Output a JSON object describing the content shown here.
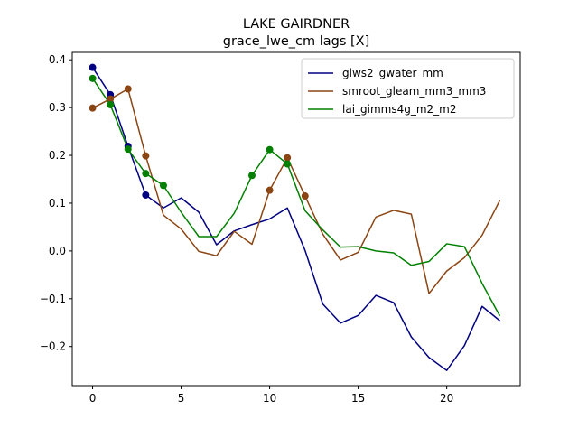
{
  "chart_data": {
    "type": "line",
    "title": "LAKE GAIRDNER",
    "subtitle": "grace_lwe_cm lags [X]",
    "xlabel": "",
    "ylabel": "",
    "xlim": [
      -1.15,
      24.15
    ],
    "ylim": [
      -0.2818,
      0.4155
    ],
    "xticks": [
      0,
      5,
      10,
      15,
      20
    ],
    "yticks": [
      -0.2,
      -0.1,
      0.0,
      0.1,
      0.2,
      0.3,
      0.4
    ],
    "ytick_labels": [
      "−0.2",
      "−0.1",
      "0.0",
      "0.1",
      "0.2",
      "0.3",
      "0.4"
    ],
    "grid": false,
    "legend_position": "top-right",
    "x": [
      0,
      1,
      2,
      3,
      4,
      5,
      6,
      7,
      8,
      9,
      10,
      11,
      12,
      13,
      14,
      15,
      16,
      17,
      18,
      19,
      20,
      21,
      22,
      23
    ],
    "series": [
      {
        "name": "glws2_gwater_mm",
        "color": "#000080",
        "values": [
          0.384,
          0.327,
          0.219,
          0.117,
          0.09,
          0.111,
          0.081,
          0.013,
          0.042,
          0.055,
          0.067,
          0.09,
          0.001,
          -0.111,
          -0.151,
          -0.135,
          -0.093,
          -0.108,
          -0.18,
          -0.223,
          -0.25,
          -0.198,
          -0.116,
          -0.146
        ],
        "marker_lags": [
          0,
          1,
          2,
          3
        ]
      },
      {
        "name": "smroot_gleam_mm3_mm3",
        "color": "#8B4513",
        "values": [
          0.299,
          0.318,
          0.339,
          0.199,
          0.075,
          0.046,
          -0.001,
          -0.01,
          0.041,
          0.014,
          0.127,
          0.195,
          0.115,
          0.035,
          -0.019,
          -0.003,
          0.071,
          0.085,
          0.077,
          -0.089,
          -0.042,
          -0.014,
          0.033,
          0.106
        ],
        "marker_lags": [
          0,
          1,
          2,
          3,
          10,
          11,
          12
        ]
      },
      {
        "name": "lai_gimms4g_m2_m2",
        "color": "#008000",
        "values": [
          0.361,
          0.306,
          0.213,
          0.162,
          0.137,
          0.081,
          0.03,
          0.03,
          0.079,
          0.158,
          0.212,
          0.182,
          0.084,
          0.044,
          0.008,
          0.009,
          0.0,
          -0.004,
          -0.03,
          -0.022,
          0.015,
          0.009,
          -0.068,
          -0.136
        ],
        "marker_lags": [
          0,
          1,
          2,
          3,
          4,
          9,
          10,
          11
        ]
      }
    ]
  }
}
